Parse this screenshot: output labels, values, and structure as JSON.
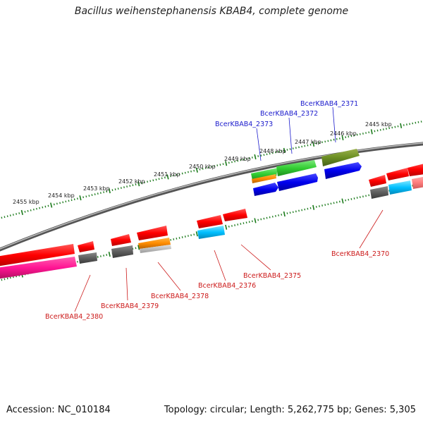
{
  "title": "Bacillus weihenstephanensis KBAB4, complete genome",
  "footer": {
    "accession": "Accession: NC_010184",
    "info": "Topology: circular; Length: 5,262,775 bp; Genes: 5,305"
  },
  "colors": {
    "backbone": "#8a8a8a",
    "tick": "#1a7a1a",
    "forward_label": "#1a1acc",
    "reverse_label": "#cc1a1a"
  },
  "scale_labels": [
    "2455 kbp",
    "2454 kbp",
    "2453 kbp",
    "2452 kbp",
    "2451 kbp",
    "2450 kbp",
    "2449 kbp",
    "2448 kbp",
    "2447 kbp",
    "2446 kbp",
    "2445 kbp"
  ],
  "gene_labels": {
    "forward": [
      "BcerKBAB4_2373",
      "BcerKBAB4_2372",
      "BcerKBAB4_2371"
    ],
    "reverse": [
      "BcerKBAB4_2380",
      "BcerKBAB4_2379",
      "BcerKBAB4_2378",
      "BcerKBAB4_2376",
      "BcerKBAB4_2375",
      "BcerKBAB4_2370"
    ]
  }
}
